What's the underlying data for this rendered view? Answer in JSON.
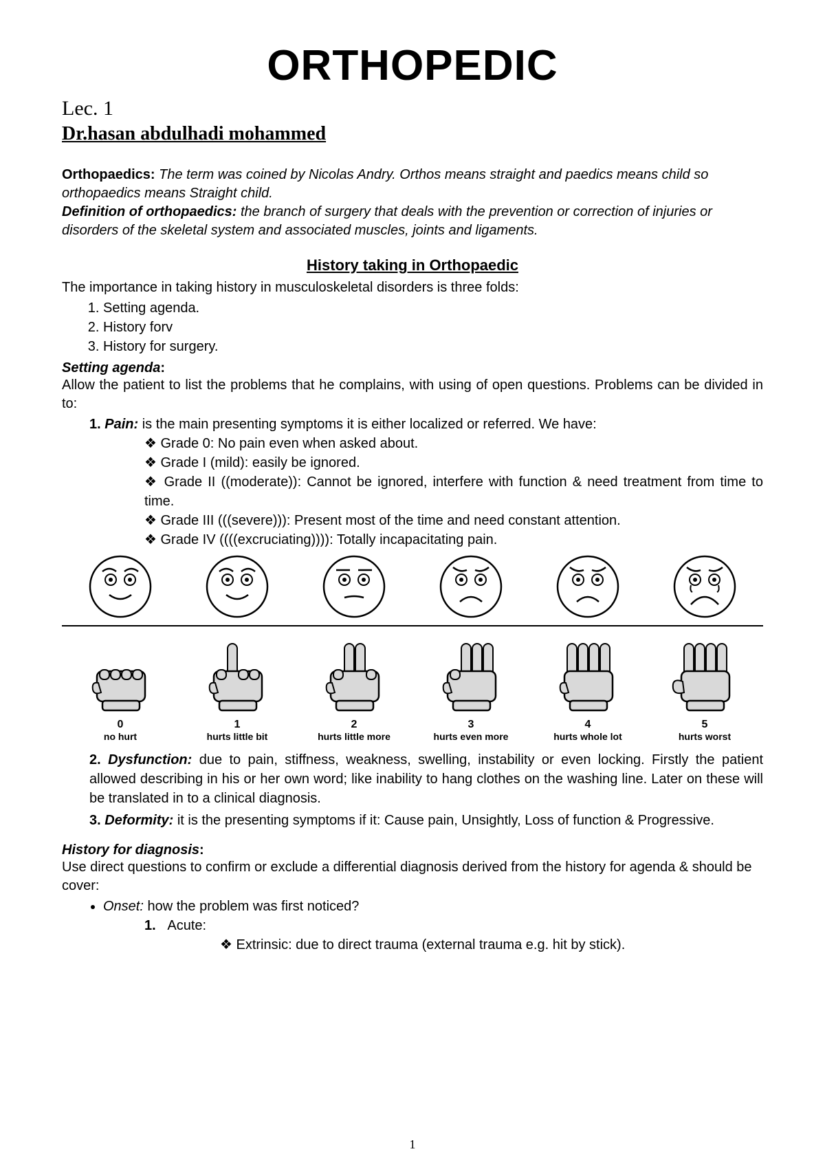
{
  "title": "ORTHOPEDIC",
  "lecture": "Lec. 1",
  "author": "Dr.hasan abdulhadi mohammed",
  "intro": {
    "lead1": "Orthopaedics:",
    "text1": " The term was coined by Nicolas Andry. Orthos means straight and paedics means child so orthopaedics means Straight child.",
    "lead2": "Definition of orthopaedics:",
    "text2": " the branch of surgery that deals with the prevention or correction of injuries or disorders of the skeletal system and associated muscles, joints and ligaments."
  },
  "section_history": "History taking in Orthopaedic",
  "history_intro": "The importance in taking history in musculoskeletal disorders is three folds:",
  "history_items": [
    "Setting agenda.",
    "History forv",
    "History for surgery."
  ],
  "setting_agenda": {
    "heading": "Setting agenda",
    "text": "Allow the patient to list the problems that he complains, with using of open questions. Problems can be divided in to:",
    "pain": {
      "n": "1.",
      "t": "Pain:",
      "text": " is the main presenting symptoms it is either localized or referred. We have:",
      "grades": [
        "Grade 0: No pain even when asked about.",
        "Grade I (mild): easily be ignored.",
        "Grade II ((moderate)): Cannot be ignored, interfere with function & need treatment from time to time.",
        "Grade III (((severe))): Present most of the time and need constant attention.",
        "Grade IV ((((excruciating)))): Totally incapacitating pain."
      ]
    },
    "dysfunction": {
      "n": "2.",
      "t": "Dysfunction:",
      "text": " due to pain, stiffness, weakness, swelling, instability or even locking. Firstly the patient allowed describing in his or her own word; like inability to hang clothes on the washing line. Later on these will be translated in to a clinical diagnosis."
    },
    "deformity": {
      "n": "3.",
      "t": "Deformity:",
      "text": " it is the presenting symptoms if it: Cause pain, Unsightly, Loss of function & Progressive."
    }
  },
  "pain_scale": {
    "numbers": [
      "0",
      "1",
      "2",
      "3",
      "4",
      "5"
    ],
    "labels": [
      "no hurt",
      "hurts little bit",
      "hurts little more",
      "hurts even more",
      "hurts whole lot",
      "hurts worst"
    ],
    "mouth": [
      "smile",
      "smile",
      "flat",
      "frown",
      "frown",
      "bigfrown"
    ],
    "brows": [
      "up",
      "up",
      "flat",
      "worry",
      "worry",
      "worry"
    ],
    "tears": [
      false,
      false,
      false,
      false,
      false,
      true
    ],
    "fingers": [
      0,
      1,
      2,
      3,
      4,
      5
    ],
    "face_stroke": "#000000",
    "hand_fill": "#d9d9d9",
    "hand_stroke": "#000000"
  },
  "history_diagnosis": {
    "heading": "History for diagnosis",
    "text": "Use direct questions to confirm or exclude a differential diagnosis derived from the history for agenda & should be cover:",
    "onset_label": "Onset:",
    "onset_text": " how the problem was first noticed?",
    "acute_n": "1.",
    "acute": "Acute:",
    "extrinsic": "Extrinsic: due to direct trauma (external trauma e.g. hit by stick)."
  },
  "page_number": "1"
}
